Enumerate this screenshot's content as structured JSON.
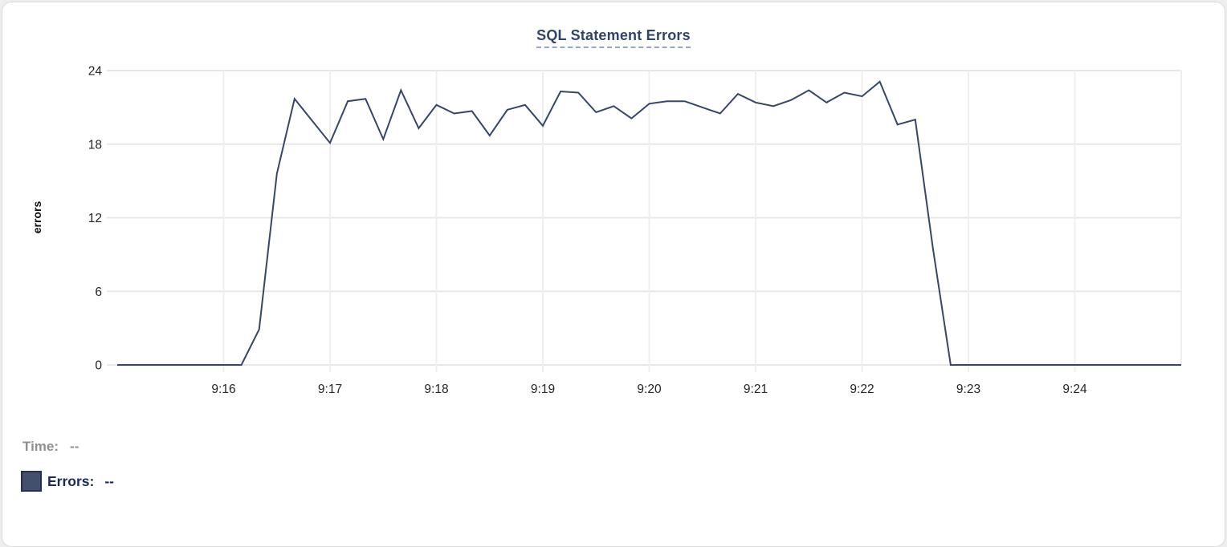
{
  "card": {
    "title": "SQL Statement Errors"
  },
  "chart_data": {
    "type": "line",
    "title": "SQL Statement Errors",
    "xlabel": "",
    "ylabel": "errors",
    "ylim": [
      0,
      24
    ],
    "y_ticks": [
      0,
      6,
      12,
      18,
      24
    ],
    "x_tick_labels": [
      "9:16",
      "9:17",
      "9:18",
      "9:19",
      "9:20",
      "9:21",
      "9:22",
      "9:23",
      "9:24"
    ],
    "x_range": [
      "9:15:00",
      "9:25:00"
    ],
    "sample_interval_seconds": 10,
    "grid": true,
    "legend_position": "bottom-left",
    "line_color": "#36466b",
    "series": [
      {
        "name": "Errors",
        "times": [
          "9:15:00",
          "9:15:10",
          "9:15:20",
          "9:15:30",
          "9:15:40",
          "9:15:50",
          "9:16:00",
          "9:16:10",
          "9:16:20",
          "9:16:30",
          "9:16:40",
          "9:16:50",
          "9:17:00",
          "9:17:10",
          "9:17:20",
          "9:17:30",
          "9:17:40",
          "9:17:50",
          "9:18:00",
          "9:18:10",
          "9:18:20",
          "9:18:30",
          "9:18:40",
          "9:18:50",
          "9:19:00",
          "9:19:10",
          "9:19:20",
          "9:19:30",
          "9:19:40",
          "9:19:50",
          "9:20:00",
          "9:20:10",
          "9:20:20",
          "9:20:30",
          "9:20:40",
          "9:20:50",
          "9:21:00",
          "9:21:10",
          "9:21:20",
          "9:21:30",
          "9:21:40",
          "9:21:50",
          "9:22:00",
          "9:22:10",
          "9:22:20",
          "9:22:30",
          "9:22:40",
          "9:22:50",
          "9:23:00",
          "9:23:10",
          "9:23:20",
          "9:23:30",
          "9:23:40",
          "9:23:50",
          "9:24:00",
          "9:24:10",
          "9:24:20",
          "9:24:30",
          "9:24:40",
          "9:24:50",
          "9:25:00"
        ],
        "values": [
          0,
          0,
          0,
          0,
          0,
          0,
          0,
          0,
          2.9,
          15.6,
          21.7,
          19.9,
          18.1,
          21.5,
          21.7,
          18.4,
          22.4,
          19.3,
          21.2,
          20.5,
          20.7,
          18.7,
          20.8,
          21.2,
          19.5,
          22.3,
          22.2,
          20.6,
          21.1,
          20.1,
          21.3,
          21.5,
          21.5,
          21.0,
          20.5,
          22.1,
          21.4,
          21.1,
          21.6,
          22.4,
          21.4,
          22.2,
          21.9,
          23.1,
          19.6,
          20.0,
          9.5,
          0,
          0,
          0,
          0,
          0,
          0,
          0,
          0,
          0,
          0,
          0,
          0,
          0,
          0
        ]
      }
    ]
  },
  "legend": {
    "time_label": "Time:",
    "time_value": "--",
    "errors_label": "Errors:",
    "errors_value": "--",
    "swatch_color": "#43506c"
  },
  "colors": {
    "title": "#32436b",
    "line": "#36466b",
    "grid_horizontal": "#e7e7e7",
    "grid_vertical": "#efefef",
    "tick_text": "#242424",
    "axis_title_text": "#0a0a0a",
    "card_border": "#d9d9d9"
  }
}
